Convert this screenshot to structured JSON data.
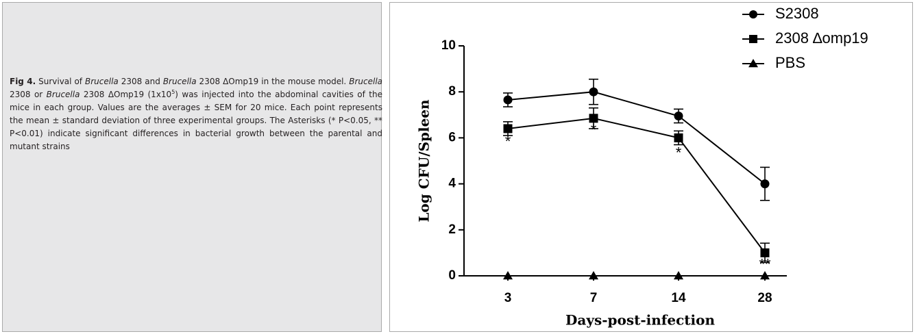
{
  "caption": {
    "label": "Fig 4.",
    "seg1": " Survival of ",
    "genus_a": "Brucella",
    "seg2": " 2308 and ",
    "genus_b": "Brucella",
    "seg3": " 2308 ΔOmp19 in the mouse model. ",
    "genus_c": "Brucella",
    "seg4": " 2308 or ",
    "genus_d": "Brucella",
    "seg5": " 2308 ΔOmp19 (1x10",
    "exponent": "5",
    "seg6": ") was injected into the abdominal cavities of the mice in each group. Values are the averages ± SEM for 20 mice. Each point represents the mean ± standard deviation of three experimental groups. The Asterisks (* P<0.05, ** P<0.01) indicate significant differences in bacterial growth between the parental and mutant strains"
  },
  "chart_data": {
    "type": "line",
    "categories": [
      "3",
      "7",
      "14",
      "28"
    ],
    "xlabel": "Days-post-infection",
    "ylabel": "Log CFU/Spleen",
    "ylim": [
      0,
      10
    ],
    "yticks": [
      0,
      2,
      4,
      6,
      8,
      10
    ],
    "legend_position": "top-right",
    "series": [
      {
        "name": "S2308",
        "marker": "circle",
        "values": [
          7.65,
          8.0,
          6.95,
          4.0
        ],
        "errors": [
          0.3,
          0.55,
          0.3,
          0.72
        ]
      },
      {
        "name": "2308 ∆omp19",
        "marker": "square",
        "values": [
          6.4,
          6.85,
          6.0,
          1.0
        ],
        "errors": [
          0.3,
          0.45,
          0.3,
          0.42
        ]
      },
      {
        "name": "PBS",
        "marker": "triangle",
        "values": [
          0,
          0,
          0,
          0
        ],
        "errors": [
          0,
          0,
          0,
          0
        ]
      }
    ],
    "annotations": [
      "*",
      "*",
      "*",
      "**"
    ],
    "annotation_values": [
      5.8,
      6.3,
      5.3,
      0.45
    ]
  }
}
